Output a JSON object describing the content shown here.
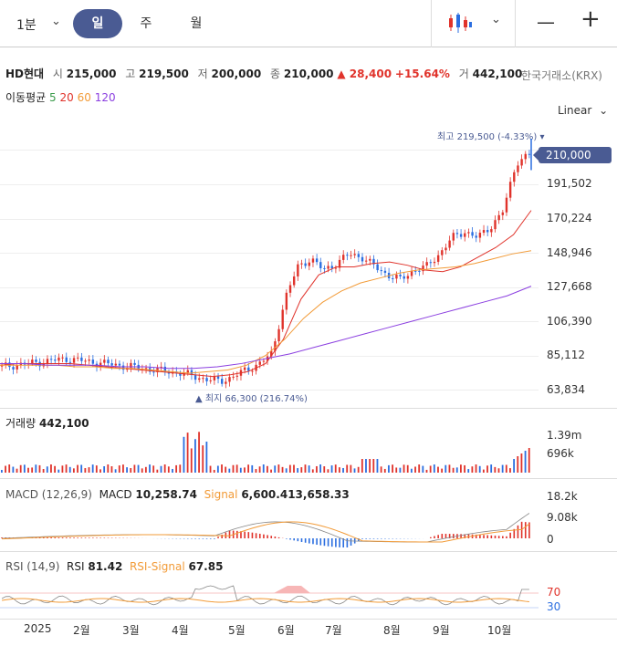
{
  "header": {
    "timeframe": "1분",
    "tabs": [
      {
        "label": "일",
        "active": true
      },
      {
        "label": "주",
        "active": false
      },
      {
        "label": "월",
        "active": false
      }
    ],
    "zoom_out": "—",
    "zoom_in": "+"
  },
  "stock": {
    "name": "HD현대",
    "open_label": "시",
    "open": "215,000",
    "high_label": "고",
    "high": "219,500",
    "low_label": "저",
    "low": "200,000",
    "close_label": "종",
    "close": "210,000",
    "change": "▲ 28,400",
    "change_pct": "+15.64%",
    "volume_label": "거",
    "volume": "442,100",
    "exchange": "한국거래소(KRX)"
  },
  "ma_legend": {
    "label": "이동평균",
    "periods": [
      "5",
      "20",
      "60",
      "120"
    ],
    "colors": [
      "#3a9b4a",
      "#e0332b",
      "#f29b38",
      "#8b3fe0"
    ]
  },
  "scale_mode": "Linear",
  "main_chart": {
    "high_note": "최고 219,500 (-4.33%)",
    "low_note": "▲ 최지 66,300 (216.74%)",
    "current_price": "210,000",
    "y_ticks": [
      "191,502",
      "170,224",
      "148,946",
      "127,668",
      "106,390",
      "85,112",
      "63,834"
    ]
  },
  "volume_panel": {
    "label": "거래량",
    "value": "442,100",
    "ticks": [
      "1.39m",
      "696k"
    ]
  },
  "macd_panel": {
    "label": "MACD (12,26,9)",
    "macd_label": "MACD",
    "macd_value": "10,258.74",
    "signal_label": "Signal",
    "signal_value": "6,600.413,658.33",
    "ticks": [
      "18.2k",
      "9.08k",
      "0"
    ]
  },
  "rsi_panel": {
    "label": "RSI (14,9)",
    "rsi_label": "RSI",
    "rsi_value": "81.42",
    "signal_label": "RSI-Signal",
    "signal_value": "67.85",
    "ticks": [
      "70",
      "30"
    ]
  },
  "x_axis": [
    "2025",
    "2월",
    "3월",
    "4월",
    "5월",
    "6월",
    "7월",
    "8월",
    "9월",
    "10월"
  ],
  "chart_data": {
    "type": "candlestick",
    "dates_axis": [
      "2025",
      "2월",
      "3월",
      "4월",
      "5월",
      "6월",
      "7월",
      "8월",
      "9월",
      "10월"
    ],
    "close_path": [
      78,
      79,
      80,
      81,
      82,
      83,
      82,
      81,
      80,
      79,
      78,
      77,
      76,
      75,
      74,
      72,
      70,
      69,
      72,
      76,
      80,
      86,
      120,
      140,
      145,
      138,
      142,
      148,
      146,
      140,
      135,
      132,
      138,
      140,
      148,
      158,
      162,
      158,
      165,
      175,
      205,
      210
    ],
    "ma_lines": {
      "ma20": [
        79,
        80,
        80,
        80,
        80,
        79,
        78,
        77,
        76,
        75,
        74,
        73,
        72,
        73,
        75,
        80,
        95,
        120,
        135,
        140,
        140,
        142,
        143,
        141,
        138,
        137,
        140,
        146,
        152,
        160,
        175
      ],
      "ma60": [
        79,
        79,
        79,
        79,
        78,
        78,
        77,
        77,
        76,
        75,
        74,
        75,
        76,
        79,
        85,
        95,
        108,
        118,
        125,
        130,
        133,
        136,
        138,
        139,
        140,
        142,
        145,
        148,
        150
      ],
      "ma120": [
        80,
        80,
        79,
        79,
        79,
        78,
        78,
        77,
        77,
        78,
        80,
        83,
        86,
        90,
        94,
        98,
        102,
        106,
        110,
        114,
        118,
        122,
        128
      ]
    },
    "volume": "442,100",
    "macd": "10,258.74",
    "rsi": "81.42"
  },
  "colors": {
    "accent": "#4a5b93",
    "up": "#e0332b",
    "down": "#2b6ee0",
    "ma5": "#3a9b4a",
    "ma20": "#e0332b",
    "ma60": "#f29b38",
    "ma120": "#8b3fe0"
  }
}
